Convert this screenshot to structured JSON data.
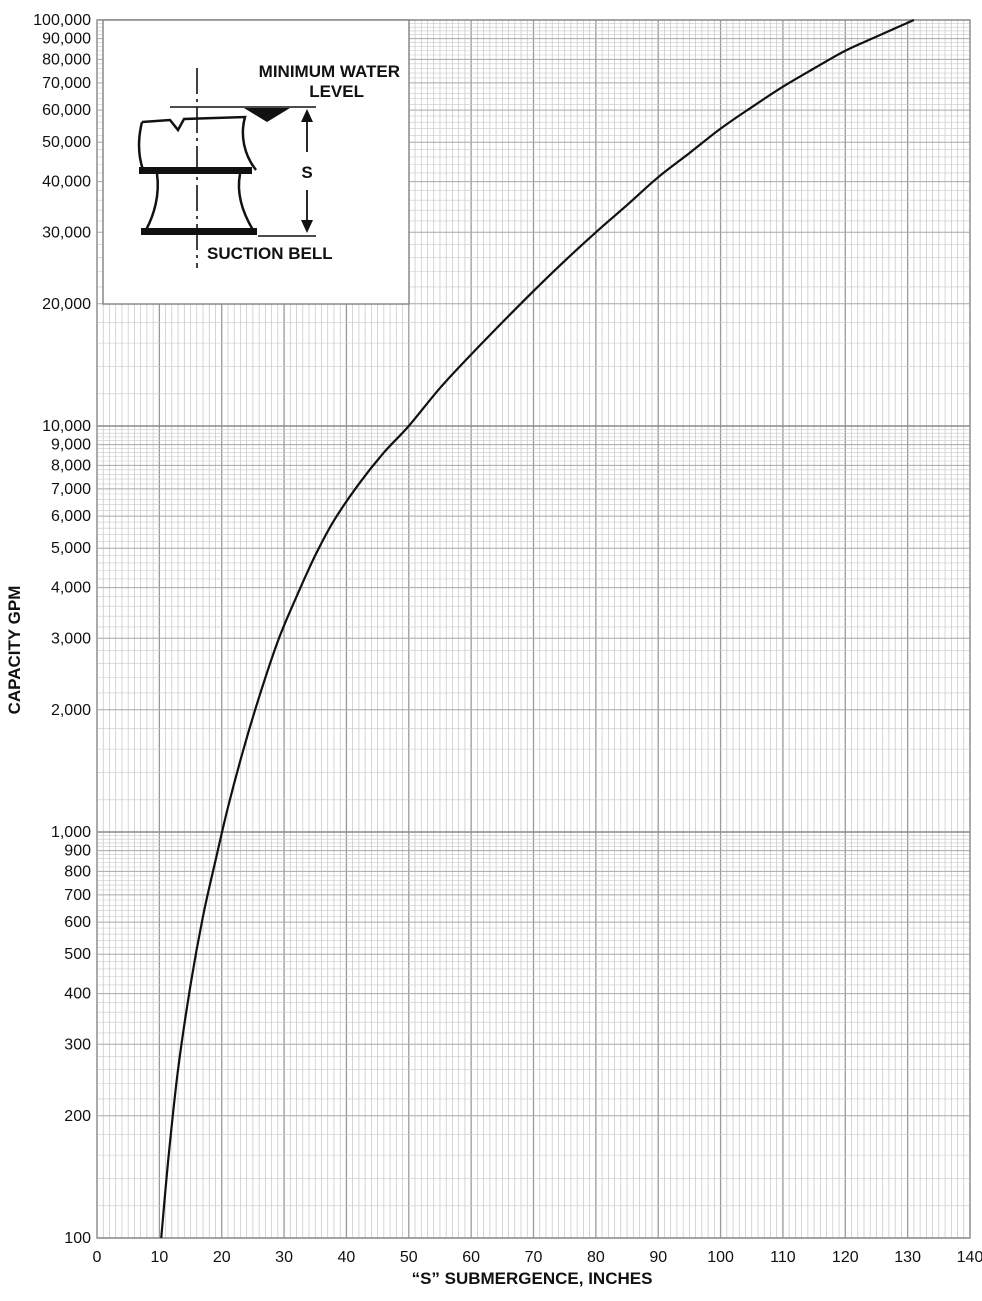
{
  "chart_data": {
    "type": "line",
    "title": "",
    "xlabel": "“S” SUBMERGENCE, INCHES",
    "ylabel": "CAPACITY GPM",
    "xlim": [
      0,
      140
    ],
    "ylim": [
      100,
      100000
    ],
    "yscale": "log",
    "grid": true,
    "x_ticks": [
      0,
      10,
      20,
      30,
      40,
      50,
      60,
      70,
      80,
      90,
      100,
      110,
      120,
      130,
      140
    ],
    "x_tick_labels": [
      "0",
      "10",
      "20",
      "30",
      "40",
      "50",
      "60",
      "70",
      "80",
      "90",
      "100",
      "110",
      "120",
      "130",
      "140"
    ],
    "y_ticks": [
      100,
      200,
      300,
      400,
      500,
      600,
      700,
      800,
      900,
      1000,
      2000,
      3000,
      4000,
      5000,
      6000,
      7000,
      8000,
      9000,
      10000,
      20000,
      30000,
      40000,
      50000,
      60000,
      70000,
      80000,
      90000,
      100000
    ],
    "y_tick_labels": [
      "100",
      "200",
      "300",
      "400",
      "500",
      "600",
      "700",
      "800",
      "900",
      "1,000",
      "2,000",
      "3,000",
      "4,000",
      "5,000",
      "6,000",
      "7,000",
      "8,000",
      "9,000",
      "10,000",
      "20,000",
      "30,000",
      "40,000",
      "50,000",
      "60,000",
      "70,000",
      "80,000",
      "90,000",
      "100,000"
    ],
    "series": [
      {
        "color": "#111111",
        "x": [
          10.3,
          11.5,
          13,
          15,
          17,
          19,
          21,
          23.5,
          26,
          29,
          32,
          35,
          38,
          42,
          46,
          50,
          55,
          60,
          65,
          70,
          75,
          80,
          85,
          90,
          95,
          100,
          105,
          110,
          115,
          120,
          125,
          131
        ],
        "y": [
          100,
          160,
          260,
          420,
          620,
          850,
          1150,
          1600,
          2150,
          2950,
          3800,
          4800,
          5850,
          7200,
          8600,
          10000,
          12400,
          15000,
          18000,
          21500,
          25500,
          30000,
          35000,
          41000,
          47000,
          54000,
          61000,
          68500,
          76000,
          84000,
          91000,
          100000
        ]
      }
    ]
  },
  "inset": {
    "line1": "MINIMUM WATER",
    "line2": "LEVEL",
    "s_label": "S",
    "bell_label": "SUCTION BELL"
  }
}
